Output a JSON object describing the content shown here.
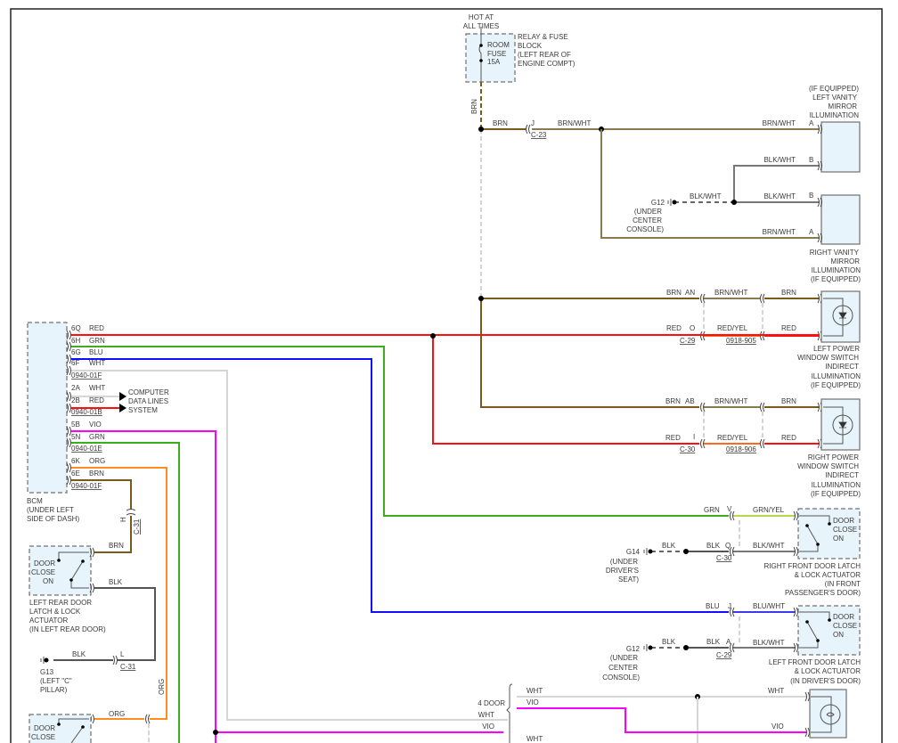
{
  "colors": {
    "BRN": "#7a5a1a",
    "RED": "#ff1010",
    "GRN": "#3cae1e",
    "BLU": "#1010ff",
    "WHT": "#d6d6d6",
    "VIO": "#ff00ff",
    "ORG": "#ff8c20",
    "BLK": "#555555",
    "component_fill": "#e8f4fb"
  },
  "fuse": {
    "hot": [
      "HOT AT",
      "ALL TIMES"
    ],
    "fuse": [
      "ROOM",
      "FUSE",
      "15A"
    ],
    "block": [
      "RELAY & FUSE",
      "BLOCK",
      "(LEFT REAR OF",
      "ENGINE COMPT)"
    ],
    "wire_vertical": "BRN",
    "wire_h": "BRN",
    "pin": "J",
    "connector": "C-23",
    "wire_out": "BRN/WHT"
  },
  "vanity": {
    "left_name": [
      "(IF EQUIPPED)",
      "LEFT VANITY",
      "MIRROR",
      "ILLUMINATION"
    ],
    "right_name": [
      "RIGHT VANITY",
      "MIRROR",
      "ILLUMINATION",
      "(IF EQUIPPED)"
    ],
    "w1": "BRN/WHT",
    "p1": "A",
    "w2": "BLK/WHT",
    "p2": "B",
    "w3": "BLK/WHT",
    "p3": "B",
    "w4": "BRN/WHT",
    "p4": "A",
    "ground_wire": "BLK/WHT",
    "ground": [
      "G12",
      "(UNDER",
      "CENTER",
      "CONSOLE)"
    ]
  },
  "pws_left": {
    "w1": "BRN",
    "p1": "AN",
    "w1b": "BRN/WHT",
    "w1c": "BRN",
    "w2": "RED",
    "p2": "O",
    "w2b": "RED/YEL",
    "w2c": "RED",
    "conn1": "C-29",
    "conn2": "0918-905",
    "name": [
      "LEFT POWER",
      "WINDOW SWITCH",
      "INDIRECT",
      "ILLUMINATION",
      "(IF EQUIPPED)"
    ]
  },
  "pws_right": {
    "w1": "BRN",
    "p1": "AB",
    "w1b": "BRN/WHT",
    "w1c": "BRN",
    "w2": "RED",
    "p2": "I",
    "w2b": "RED/YEL",
    "w2c": "RED",
    "conn1": "C-30",
    "conn2": "0918-906",
    "name": [
      "RIGHT POWER",
      "WINDOW SWITCH",
      "INDIRECT",
      "ILLUMINATION",
      "(IF EQUIPPED)"
    ]
  },
  "bcm": {
    "pins": [
      {
        "pin": "6Q",
        "wire": "RED"
      },
      {
        "pin": "6H",
        "wire": "GRN"
      },
      {
        "pin": "6G",
        "wire": "BLU"
      },
      {
        "pin": "6F",
        "wire": "WHT"
      },
      {
        "pin": "2A",
        "wire": "WHT"
      },
      {
        "pin": "2B",
        "wire": "RED"
      },
      {
        "pin": "5B",
        "wire": "VIO"
      },
      {
        "pin": "5N",
        "wire": "GRN"
      },
      {
        "pin": "6K",
        "wire": "ORG"
      },
      {
        "pin": "6E",
        "wire": "BRN"
      }
    ],
    "connectors": [
      "0940-01F",
      "0940-01B",
      "0940-01E",
      "0940-01F"
    ],
    "name": [
      "BCM",
      "(UNDER LEFT",
      "SIDE OF DASH)"
    ],
    "data_lines": [
      "COMPUTER",
      "DATA LINES",
      "SYSTEM"
    ]
  },
  "rf_door": {
    "w1": "GRN",
    "p1": "V",
    "w1b": "GRN/YEL",
    "gw": "BLK",
    "w2": "BLK",
    "p2": "Q",
    "conn": "C-30",
    "w2b": "BLK/WHT",
    "switch": [
      "DOOR",
      "CLOSE",
      "ON"
    ],
    "ground": [
      "G14",
      "(UNDER",
      "DRIVER'S",
      "SEAT)"
    ],
    "name": [
      "RIGHT FRONT DOOR LATCH",
      "& LOCK ACTUATOR",
      "(IN FRONT",
      "PASSENGER'S DOOR)"
    ]
  },
  "lf_door": {
    "w1": "BLU",
    "p1": "J",
    "w1b": "BLU/WHT",
    "gw": "BLK",
    "w2": "BLK",
    "p2": "A",
    "conn": "C-29",
    "w2b": "BLK/WHT",
    "switch": [
      "DOOR",
      "CLOSE",
      "ON"
    ],
    "ground": [
      "G12",
      "(UNDER",
      "CENTER",
      "CONSOLE)"
    ],
    "name": [
      "LEFT FRONT DOOR LATCH",
      "& LOCK ACTUATOR",
      "(IN DRIVER'S DOOR)"
    ]
  },
  "lr_door": {
    "w1": "BRN",
    "pin_h": "H",
    "conn_h": "C-31",
    "w2": "BLK",
    "switch": [
      "DOOR",
      "CLOSE",
      "ON"
    ],
    "name": [
      "LEFT REAR DOOR",
      "LATCH & LOCK",
      "ACTUATOR",
      "(IN LEFT REAR DOOR)"
    ],
    "gw": "BLK",
    "pin_l": "L",
    "conn_l": "C-31",
    "ground": [
      "G13",
      "(LEFT \"C\"",
      "PILLAR)"
    ]
  },
  "bottom": {
    "org_v": "ORG",
    "org_h": "ORG",
    "option": "4 DOOR",
    "opt_wht": "WHT",
    "opt_vio": "VIO",
    "b_wht1": "WHT",
    "b_vio1": "VIO",
    "b_wht2": "WHT",
    "lamp_wht": "WHT",
    "lamp_vio": "VIO",
    "rr_switch": [
      "DOOR",
      "CLOSE"
    ]
  }
}
